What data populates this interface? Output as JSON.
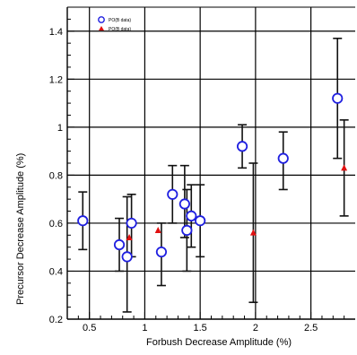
{
  "chart_data": {
    "type": "scatter",
    "xlabel": "Forbush Decrease Amplitude (%)",
    "ylabel": "Precursor Decrease Amplitude (%)",
    "xlim": [
      0.3,
      2.9
    ],
    "ylim": [
      0.2,
      1.5
    ],
    "x_ticks": [
      0.5,
      1,
      1.5,
      2,
      2.5
    ],
    "x_tick_labels": [
      "0.5",
      "1",
      "1.5",
      "2",
      "2.5"
    ],
    "y_ticks": [
      0.2,
      0.4,
      0.6,
      0.8,
      1.0,
      1.2,
      1.4
    ],
    "y_tick_labels": [
      "0.2",
      "0.4",
      "0.6",
      "0.8",
      "1",
      "1.2",
      "1.4"
    ],
    "grid": true,
    "legend_position": "top-left",
    "series": [
      {
        "name": "PO(B data)",
        "marker": "open-circle",
        "color": "#1f1fe0",
        "points": [
          {
            "x": 0.44,
            "y": 0.61,
            "ylo": 0.49,
            "yhi": 0.73
          },
          {
            "x": 0.77,
            "y": 0.51,
            "ylo": 0.4,
            "yhi": 0.62
          },
          {
            "x": 0.84,
            "y": 0.46,
            "ylo": 0.23,
            "yhi": 0.71
          },
          {
            "x": 0.88,
            "y": 0.6,
            "ylo": 0.46,
            "yhi": 0.72
          },
          {
            "x": 1.15,
            "y": 0.48,
            "ylo": 0.34,
            "yhi": 0.6
          },
          {
            "x": 1.25,
            "y": 0.72,
            "ylo": 0.6,
            "yhi": 0.84
          },
          {
            "x": 1.36,
            "y": 0.68,
            "ylo": 0.54,
            "yhi": 0.84
          },
          {
            "x": 1.38,
            "y": 0.57,
            "ylo": 0.4,
            "yhi": 0.74
          },
          {
            "x": 1.42,
            "y": 0.63,
            "ylo": 0.5,
            "yhi": 0.76
          },
          {
            "x": 1.5,
            "y": 0.61,
            "ylo": 0.46,
            "yhi": 0.76
          },
          {
            "x": 1.88,
            "y": 0.92,
            "ylo": 0.83,
            "yhi": 1.01
          },
          {
            "x": 2.25,
            "y": 0.87,
            "ylo": 0.74,
            "yhi": 0.98
          },
          {
            "x": 2.74,
            "y": 1.12,
            "ylo": 0.87,
            "yhi": 1.37
          }
        ]
      },
      {
        "name": "PO(B data)",
        "marker": "filled-triangle",
        "color": "#e01010",
        "points": [
          {
            "x": 0.86,
            "y": 0.54
          },
          {
            "x": 1.12,
            "y": 0.57
          },
          {
            "x": 1.98,
            "y": 0.56,
            "ylo": 0.27,
            "yhi": 0.85
          },
          {
            "x": 2.8,
            "y": 0.83,
            "ylo": 0.63,
            "yhi": 1.03
          }
        ]
      }
    ]
  }
}
